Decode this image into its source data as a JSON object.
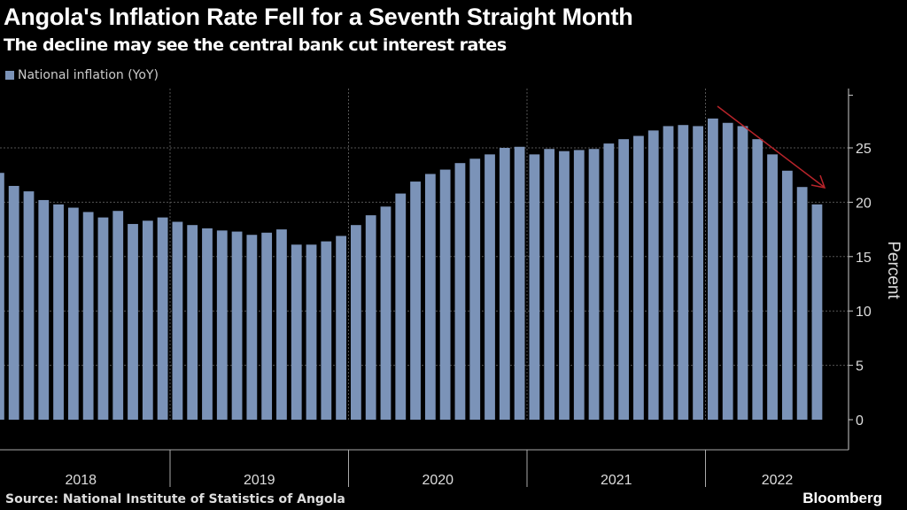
{
  "title": "Angola's Inflation Rate Fell for a Seventh Straight Month",
  "subtitle": "The decline may see the central bank cut interest rates",
  "source": "Source: National Institute of Statistics of Angola",
  "brand": "Bloomberg",
  "colors": {
    "bar": "#7b93b8",
    "arrow": "#b8242a",
    "background": "#000000"
  },
  "chart_data": {
    "type": "bar",
    "title": "Angola's Inflation Rate Fell for a Seventh Straight Month",
    "subtitle": "The decline may see the central bank cut interest rates",
    "ylabel": "Percent",
    "ylim": [
      0,
      29
    ],
    "yticks": [
      0,
      5,
      10,
      15,
      20,
      25
    ],
    "year_labels": [
      "2018",
      "2019",
      "2020",
      "2021",
      "2022"
    ],
    "legend": {
      "position": "top-left",
      "entries": [
        "National inflation (YoY)"
      ]
    },
    "grid": true,
    "series": [
      {
        "name": "National inflation (YoY)",
        "values": [
          22.7,
          21.5,
          21.0,
          20.2,
          19.8,
          19.5,
          19.1,
          18.6,
          19.2,
          18.0,
          18.3,
          18.6,
          18.2,
          17.9,
          17.6,
          17.4,
          17.3,
          17.0,
          17.2,
          17.5,
          16.1,
          16.1,
          16.4,
          16.9,
          17.9,
          18.8,
          19.6,
          20.8,
          21.9,
          22.6,
          23.0,
          23.6,
          24.0,
          24.4,
          25.0,
          25.1,
          24.4,
          24.9,
          24.7,
          24.8,
          24.9,
          25.4,
          25.8,
          26.1,
          26.6,
          27.0,
          27.1,
          27.0,
          27.7,
          27.3,
          27.0,
          25.8,
          24.4,
          22.9,
          21.4,
          19.8
        ]
      }
    ]
  }
}
